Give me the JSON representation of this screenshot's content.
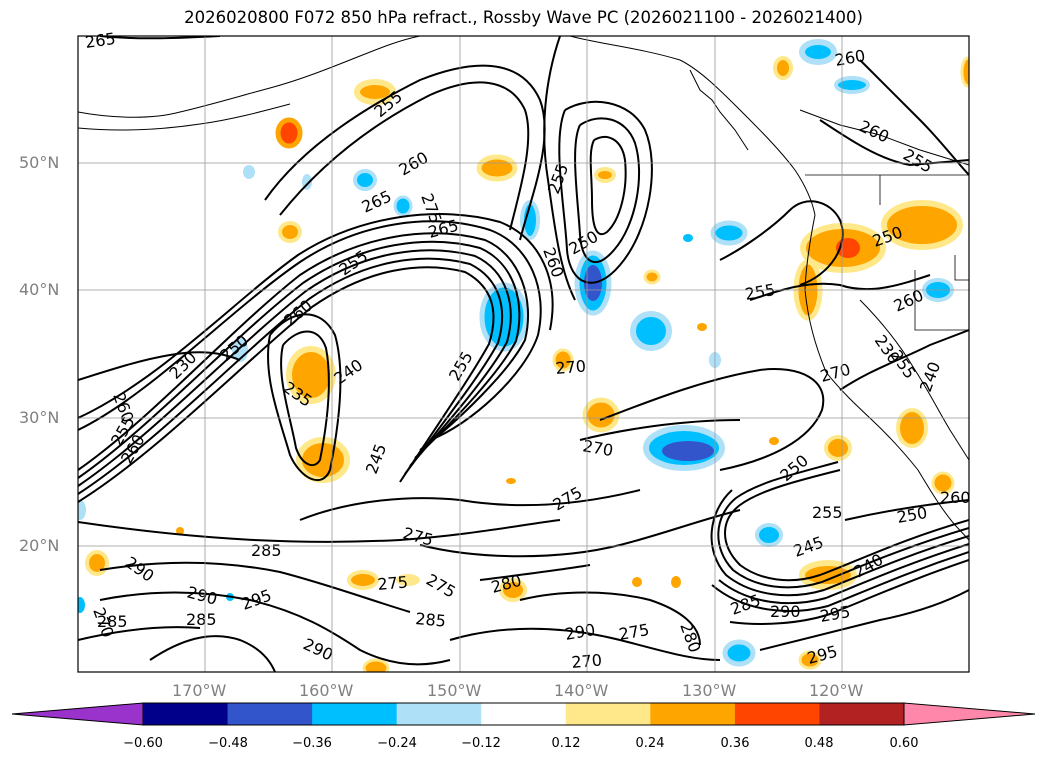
{
  "title": "2026020800 F072 850 hPa refract., Rossby Wave PC (2026021100 - 2026021400)",
  "lat_labels": [
    "50°N",
    "40°N",
    "30°N",
    "20°N"
  ],
  "lon_labels": [
    "170°W",
    "160°W",
    "150°W",
    "140°W",
    "130°W",
    "120°W"
  ],
  "colorbar": {
    "ticks": [
      "−0.60",
      "−0.48",
      "−0.36",
      "−0.24",
      "−0.12",
      "0.12",
      "0.24",
      "0.36",
      "0.48",
      "0.60"
    ],
    "colors": [
      "#9933cc",
      "#00008b",
      "#3355cc",
      "#00bfff",
      "#aee0f8",
      "#ffffff",
      "#ffe88a",
      "#ffa500",
      "#ff4500",
      "#b22222",
      "#ff88aa"
    ]
  },
  "contour_labels": [
    "265",
    "255",
    "260",
    "260",
    "255",
    "260",
    "265",
    "275",
    "265",
    "255",
    "250",
    "260",
    "260",
    "255",
    "250",
    "255",
    "260",
    "250",
    "230",
    "240",
    "235",
    "255",
    "270",
    "255",
    "240",
    "245",
    "270",
    "275",
    "270",
    "250",
    "255",
    "250",
    "245",
    "240",
    "275",
    "285",
    "275",
    "275",
    "280",
    "285",
    "290",
    "295",
    "290",
    "285",
    "290",
    "270",
    "275",
    "280",
    "285",
    "290",
    "295",
    "295",
    "290",
    "285",
    "260",
    "270",
    "230",
    "260",
    "255",
    "260"
  ]
}
